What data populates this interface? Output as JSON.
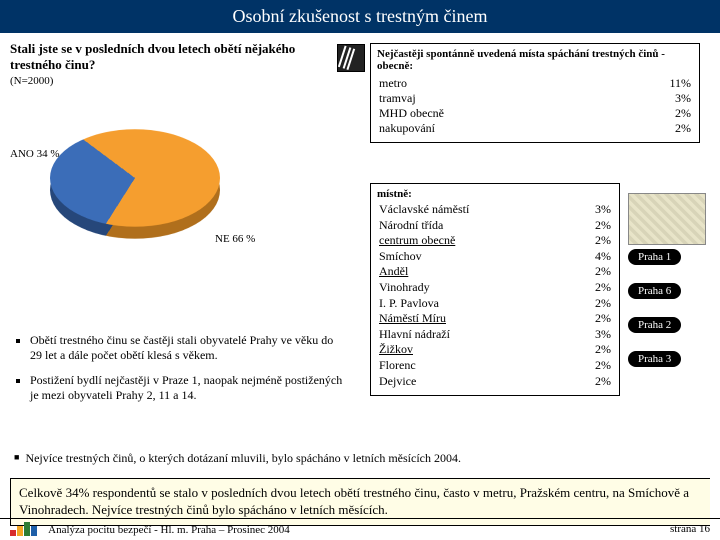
{
  "title": "Osobní zkušenost s trestným činem",
  "pie": {
    "question": "Stali jste se v posledních dvou letech obětí nějakého trestného činu?",
    "n_label": "(N=2000)",
    "slices": [
      {
        "label": "ANO 34 %",
        "value": 34,
        "color": "#3b6db8"
      },
      {
        "label": "NE 66 %",
        "value": 66,
        "color": "#f59e2f"
      }
    ],
    "shadow_colors": [
      "#26477a",
      "#b06f1c"
    ],
    "bg": "#ffffff"
  },
  "general_places": {
    "heading": "Nejčastěji spontánně uvedená místa spáchání trestných činů - obecně:",
    "items": [
      {
        "name": "metro",
        "pct": "11%"
      },
      {
        "name": "tramvaj",
        "pct": "3%"
      },
      {
        "name": "MHD obecně",
        "pct": "2%"
      },
      {
        "name": "nakupování",
        "pct": "2%"
      }
    ]
  },
  "local_places": {
    "heading": "místně:",
    "items": [
      {
        "name": "Václavské náměstí",
        "pct": "3%"
      },
      {
        "name": "Národní třída",
        "pct": "2%"
      },
      {
        "name": "centrum obecně",
        "pct": "2%",
        "underline": true
      },
      {
        "name": "Smíchov",
        "pct": "4%"
      },
      {
        "name": "Anděl",
        "pct": "2%",
        "underline": true
      },
      {
        "name": "Vinohrady",
        "pct": "2%"
      },
      {
        "name": "I. P. Pavlova",
        "pct": "2%"
      },
      {
        "name": "Náměstí Míru",
        "pct": "2%",
        "underline": true
      },
      {
        "name": "Hlavní nádraží",
        "pct": "3%"
      },
      {
        "name": "Žižkov",
        "pct": "2%",
        "underline": true
      },
      {
        "name": "Florenc",
        "pct": "2%"
      },
      {
        "name": "Dejvice",
        "pct": "2%"
      }
    ]
  },
  "badges": [
    "Praha 1",
    "Praha 6",
    "Praha 2",
    "Praha 3"
  ],
  "bullets": [
    "Obětí trestného činu se častěji stali obyvatelé Prahy ve věku do 29 let a dále počet obětí klesá s věkem.",
    "Postižení bydlí nejčastěji v Praze 1, naopak nejméně postižených je mezi obyvateli Prahy 2, 11 a 14."
  ],
  "note": "Nejvíce trestných činů, o kterých dotázaní mluvili, bylo spácháno v letních měsících 2004.",
  "highlight": "Celkově 34% respondentů se stalo v posledních dvou letech obětí trestného činu, často v metru, Pražském centru, na Smíchově a Vinohradech. Nejvíce trestných činů bylo spácháno v letních měsících.",
  "footer": {
    "left": "Analýza pocitu bezpečí - Hl. m. Praha – Prosinec 2004",
    "right": "strana 16",
    "logo_bars": [
      {
        "h": 6,
        "c": "#d82c2c"
      },
      {
        "h": 10,
        "c": "#f5a623"
      },
      {
        "h": 14,
        "c": "#2e7d32"
      },
      {
        "h": 10,
        "c": "#1e5fa8"
      }
    ]
  }
}
